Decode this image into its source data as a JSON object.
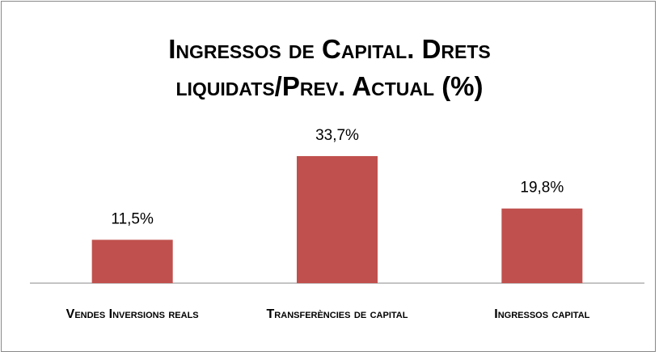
{
  "chart_data": {
    "type": "bar",
    "title": "Ingressos de Capital. Drets liquidats/Prev. Actual (%)",
    "categories": [
      "Vendes Inversions reals",
      "Transferències de capital",
      "Ingressos capital"
    ],
    "values": [
      11.5,
      33.7,
      19.8
    ],
    "value_labels": [
      "11,5%",
      "33,7%",
      "19,8%"
    ],
    "color": "#c0504d"
  }
}
